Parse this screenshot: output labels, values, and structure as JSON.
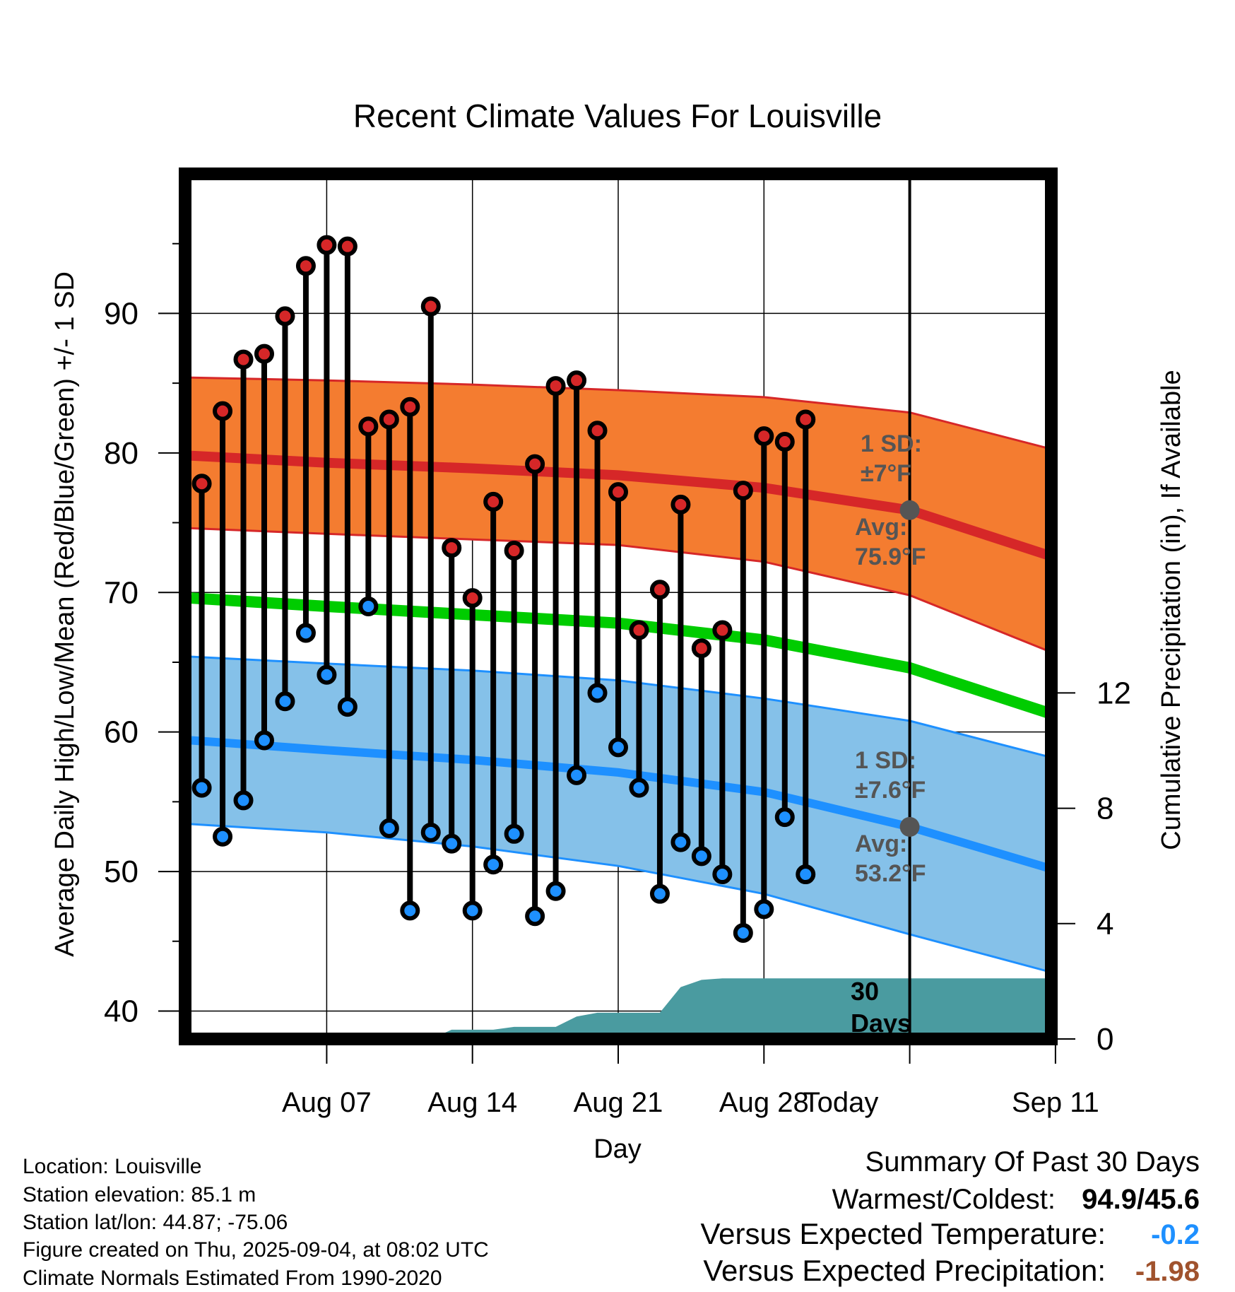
{
  "chart_data": {
    "type": "line",
    "title": "Recent Climate Values For Louisville",
    "xlabel": "Day",
    "ylabel": "Average Daily High/Low/Mean (Red/Blue/Green) +/- 1 SD",
    "y2label": "Cumulative Precipitation (in), If Available",
    "ylim": [
      38,
      100
    ],
    "y2lim": [
      0,
      30
    ],
    "xlim": [
      0.2,
      41.8
    ],
    "yticks": [
      "40",
      "50",
      "60",
      "70",
      "80",
      "90"
    ],
    "y2ticks": [
      "0",
      "4",
      "8",
      "12"
    ],
    "xticks": [
      {
        "day": 7,
        "label": "Aug 07"
      },
      {
        "day": 14,
        "label": "Aug 14"
      },
      {
        "day": 21,
        "label": "Aug 21"
      },
      {
        "day": 28,
        "label": "Aug 28"
      },
      {
        "day": 35,
        "label": "Today"
      },
      {
        "day": 42,
        "label": "Sep 11"
      }
    ],
    "today_day": 35,
    "series": [
      {
        "name": "Average Daily High",
        "color": "#d62728",
        "x": [
          0.5,
          7,
          14,
          21,
          28,
          35,
          42
        ],
        "values": [
          79.8,
          79.3,
          78.9,
          78.4,
          77.5,
          75.9,
          72.5
        ]
      },
      {
        "name": "High +1 SD",
        "color": "#d62728",
        "x": [
          0.5,
          7,
          14,
          21,
          28,
          35,
          42
        ],
        "values": [
          85.4,
          85.2,
          84.9,
          84.5,
          84.0,
          82.9,
          80.2
        ]
      },
      {
        "name": "High -1 SD",
        "color": "#d62728",
        "x": [
          0.5,
          7,
          14,
          21,
          28,
          35,
          42
        ],
        "values": [
          74.6,
          74.2,
          73.8,
          73.4,
          72.2,
          69.8,
          65.6
        ]
      },
      {
        "name": "Average Daily Mean",
        "color": "#00cc00",
        "x": [
          0.5,
          7,
          14,
          21,
          28,
          35,
          42
        ],
        "values": [
          69.6,
          69.0,
          68.4,
          67.8,
          66.6,
          64.6,
          61.2
        ]
      },
      {
        "name": "Average Daily Low",
        "color": "#1e90ff",
        "x": [
          0.5,
          7,
          14,
          21,
          28,
          35,
          42
        ],
        "values": [
          59.4,
          58.7,
          58.0,
          57.1,
          55.7,
          53.2,
          50.1
        ]
      },
      {
        "name": "Low +1 SD",
        "color": "#1e90ff",
        "x": [
          0.5,
          7,
          14,
          21,
          28,
          35,
          42
        ],
        "values": [
          65.4,
          64.9,
          64.4,
          63.7,
          62.4,
          60.8,
          58.1
        ]
      },
      {
        "name": "Low -1 SD",
        "color": "#1e90ff",
        "x": [
          0.5,
          7,
          14,
          21,
          28,
          35,
          42
        ],
        "values": [
          53.4,
          52.8,
          51.8,
          50.4,
          48.4,
          45.5,
          42.7
        ]
      }
    ],
    "daily_highs": [
      [
        1,
        77.8
      ],
      [
        2,
        83.0
      ],
      [
        3,
        86.7
      ],
      [
        4,
        87.1
      ],
      [
        5,
        89.8
      ],
      [
        6,
        93.4
      ],
      [
        7,
        94.9
      ],
      [
        8,
        94.8
      ],
      [
        9,
        81.9
      ],
      [
        10,
        82.4
      ],
      [
        11,
        83.3
      ],
      [
        12,
        90.5
      ],
      [
        13,
        73.2
      ],
      [
        14,
        69.6
      ],
      [
        15,
        76.5
      ],
      [
        16,
        73.0
      ],
      [
        17,
        79.2
      ],
      [
        18,
        84.8
      ],
      [
        19,
        85.2
      ],
      [
        20,
        81.6
      ],
      [
        21,
        77.2
      ],
      [
        22,
        67.3
      ],
      [
        23,
        70.2
      ],
      [
        24,
        76.3
      ],
      [
        25,
        66.0
      ],
      [
        26,
        67.3
      ],
      [
        27,
        77.3
      ],
      [
        28,
        81.2
      ],
      [
        29,
        80.8
      ],
      [
        30,
        82.4
      ]
    ],
    "daily_lows": [
      [
        1,
        56.0
      ],
      [
        2,
        52.5
      ],
      [
        3,
        55.1
      ],
      [
        4,
        59.4
      ],
      [
        5,
        62.2
      ],
      [
        6,
        67.1
      ],
      [
        7,
        64.1
      ],
      [
        8,
        61.8
      ],
      [
        9,
        69.0
      ],
      [
        10,
        53.1
      ],
      [
        11,
        47.2
      ],
      [
        12,
        52.8
      ],
      [
        13,
        52.0
      ],
      [
        14,
        47.2
      ],
      [
        15,
        50.5
      ],
      [
        16,
        52.7
      ],
      [
        17,
        46.8
      ],
      [
        18,
        48.6
      ],
      [
        19,
        56.9
      ],
      [
        20,
        62.8
      ],
      [
        21,
        58.9
      ],
      [
        22,
        56.0
      ],
      [
        23,
        48.4
      ],
      [
        24,
        52.1
      ],
      [
        25,
        51.1
      ],
      [
        26,
        49.8
      ],
      [
        27,
        45.6
      ],
      [
        28,
        47.3
      ],
      [
        29,
        53.9
      ],
      [
        30,
        49.8
      ]
    ],
    "precipitation": {
      "x": [
        0.5,
        12,
        13,
        14,
        15,
        16,
        17,
        18,
        19,
        20,
        21,
        22,
        23,
        24,
        25,
        26,
        27,
        28,
        29,
        30,
        31,
        32,
        33,
        34,
        35,
        36,
        37,
        38,
        39,
        40,
        41,
        41.8
      ],
      "values": [
        0,
        0,
        0.32,
        0.32,
        0.32,
        0.42,
        0.42,
        0.42,
        0.78,
        0.91,
        0.91,
        0.91,
        0.91,
        1.8,
        2.05,
        2.1,
        2.1,
        2.1,
        2.1,
        2.1,
        2.1,
        2.1,
        2.1,
        2.1,
        2.1,
        2.1,
        2.1,
        2.1,
        2.1,
        2.1,
        2.1,
        2.1
      ]
    },
    "annotations": {
      "high_sd_label": "1 SD:",
      "high_sd_value": "±7°F",
      "high_avg_label": "Avg:",
      "high_avg_value": "75.9°F",
      "low_sd_label": "1 SD:",
      "low_sd_value": "±7.6°F",
      "low_avg_label": "Avg:",
      "low_avg_value": "53.2°F",
      "days_number": "30",
      "days_word": "Days"
    },
    "colors": {
      "high_band": "#f47c30",
      "high_line": "#d62728",
      "mean_line": "#00cc00",
      "low_band": "#85c1e9",
      "low_line": "#1e90ff",
      "precip": "#4a9ba0",
      "high_marker": "#d62728",
      "low_marker": "#1e90ff",
      "annotation": "#555555",
      "anom_temp": "#1e90ff",
      "anom_precip": "#a0522d"
    }
  },
  "footer": {
    "location": "Location: Louisville",
    "elevation": "Station elevation: 85.1 m",
    "latlon": "Station lat/lon: 44.87; -75.06",
    "created": "Figure created on Thu, 2025-09-04, at 08:02 UTC",
    "normals": "Climate Normals Estimated From 1990-2020"
  },
  "summary": {
    "title": "Summary Of Past 30 Days",
    "warmest_label": "Warmest/Coldest:",
    "warmest_value": "94.9/45.6",
    "temp_label": "Versus Expected Temperature:",
    "temp_value": "-0.2",
    "precip_label": "Versus Expected Precipitation:",
    "precip_value": "-1.98"
  }
}
